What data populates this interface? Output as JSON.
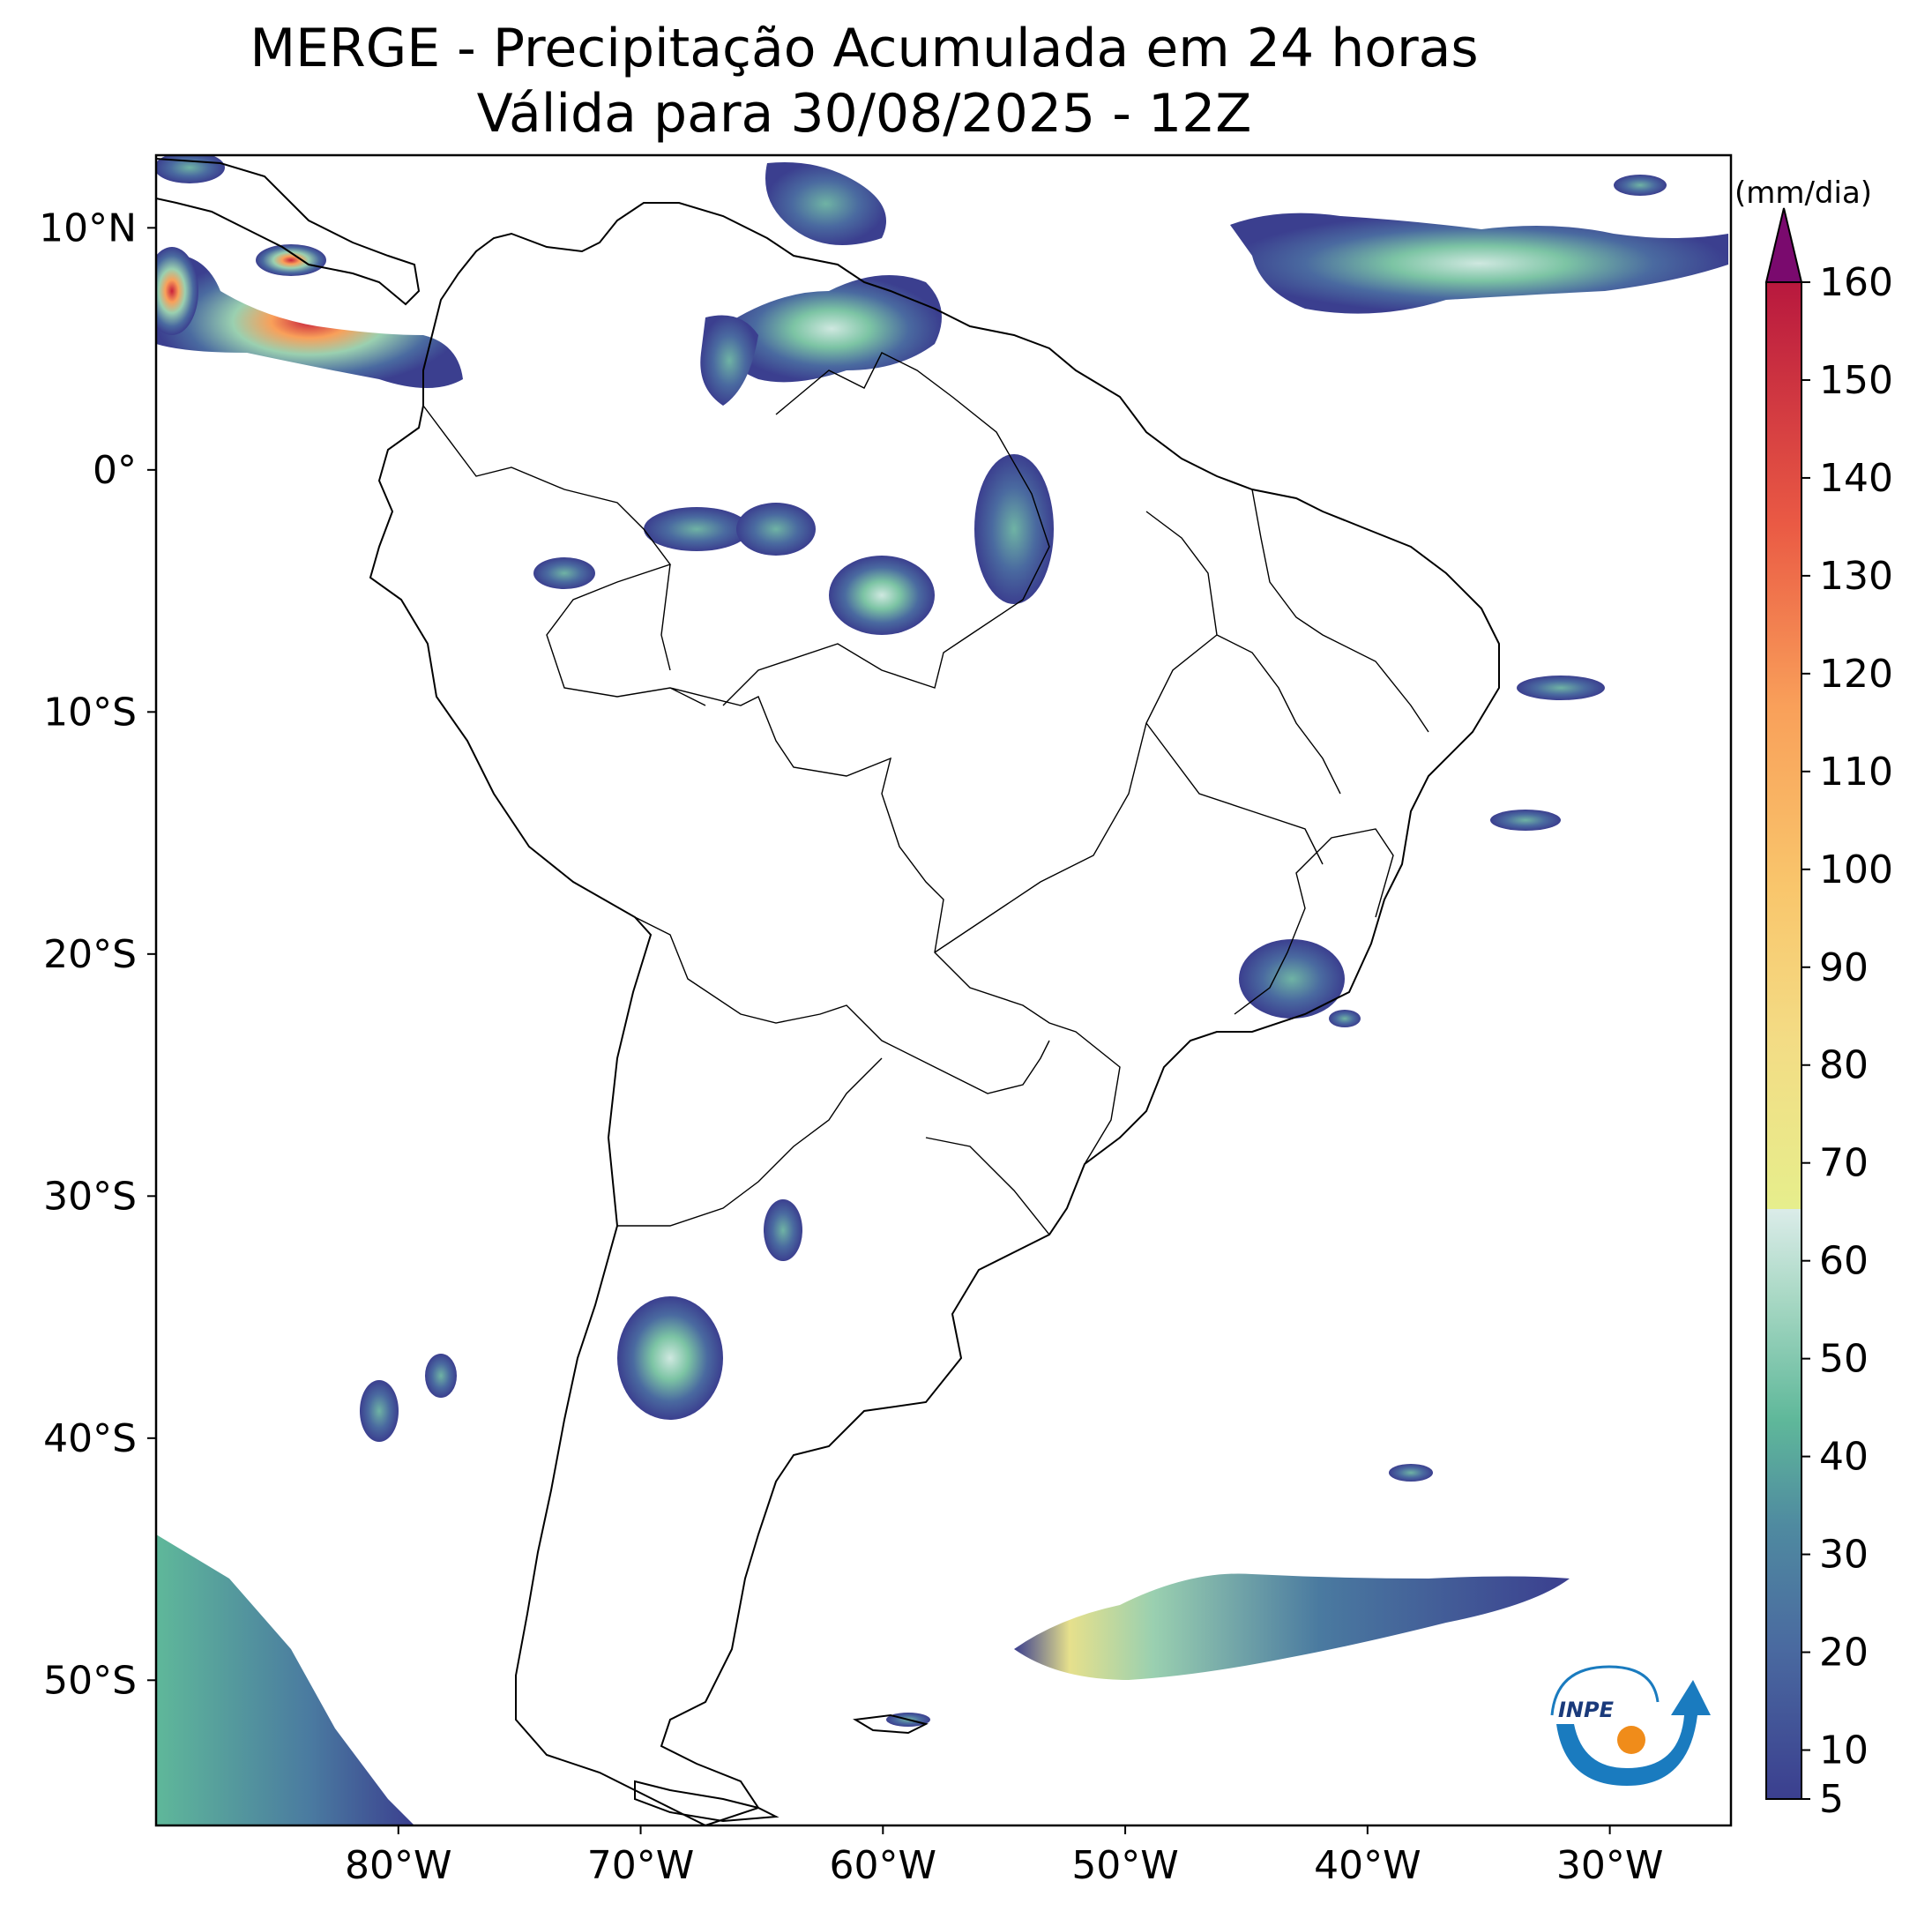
{
  "title": {
    "line1": "MERGE - Precipitação Acumulada em 24 horas",
    "line2": "Válida para 30/08/2025 - 12Z"
  },
  "map": {
    "lon_range": [
      -90,
      -25
    ],
    "lat_range": [
      -56,
      13
    ],
    "lon_ticks": [
      {
        "value": -80,
        "label": "80°W"
      },
      {
        "value": -70,
        "label": "70°W"
      },
      {
        "value": -60,
        "label": "60°W"
      },
      {
        "value": -50,
        "label": "50°W"
      },
      {
        "value": -40,
        "label": "40°W"
      },
      {
        "value": -30,
        "label": "30°W"
      }
    ],
    "lat_ticks": [
      {
        "value": 10,
        "label": "10°N"
      },
      {
        "value": 0,
        "label": "0°"
      },
      {
        "value": -10,
        "label": "10°S"
      },
      {
        "value": -20,
        "label": "20°S"
      },
      {
        "value": -30,
        "label": "30°S"
      },
      {
        "value": -40,
        "label": "40°S"
      },
      {
        "value": -50,
        "label": "50°S"
      }
    ]
  },
  "colorbar": {
    "unit": "(mm/dia)",
    "ticks": [
      "5",
      "10",
      "20",
      "30",
      "40",
      "50",
      "60",
      "70",
      "80",
      "90",
      "100",
      "110",
      "120",
      "130",
      "140",
      "150",
      "160"
    ],
    "colors": {
      "low": "#3b3f8f",
      "mid": "#5fb89a",
      "high_light": "#d8ecec",
      "yellow": "#e6ee8c",
      "orange": "#f9a05a",
      "red": "#c8203c",
      "extend": "#7a0a6e"
    }
  },
  "logo": {
    "text": "INPE"
  }
}
